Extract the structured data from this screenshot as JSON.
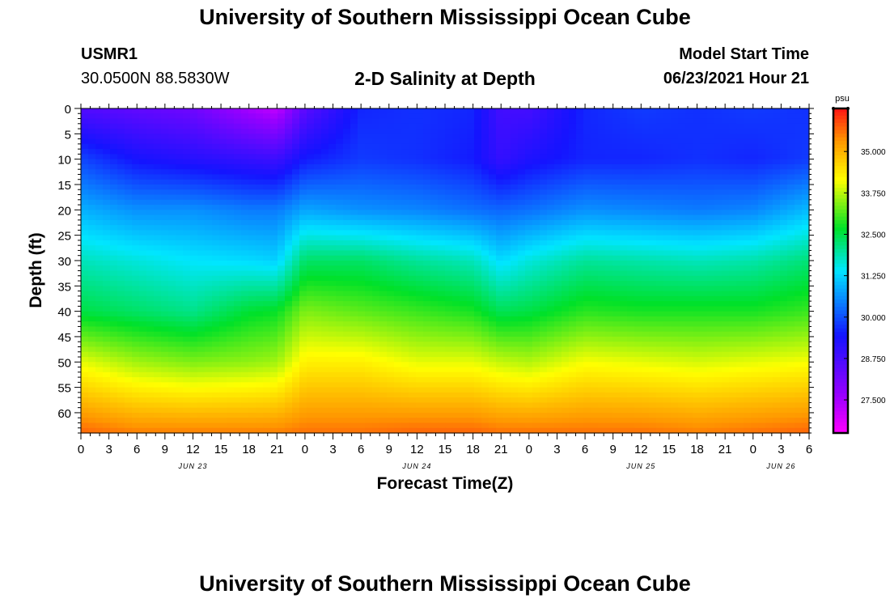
{
  "header": {
    "title": "University of Southern Mississippi Ocean Cube",
    "station_id": "USMR1",
    "coordinates": "30.0500N  88.5830W",
    "plot_title": "2-D Salinity at Depth",
    "start_label": "Model Start Time",
    "start_value": "06/23/2021 Hour 21"
  },
  "footer": {
    "title": "University of Southern Mississippi Ocean Cube"
  },
  "colors": {
    "scale_low": "#ff00ff",
    "scale_mid": "#0000ff",
    "scale_high": "#ff0000"
  },
  "chart_data": {
    "type": "heatmap",
    "title": "2-D Salinity at Depth",
    "xlabel": "Forecast Time(Z)",
    "ylabel": "Depth (ft)",
    "units": "psu",
    "x_range_hours": [
      0,
      78
    ],
    "x_ticks": [
      {
        "hour": 0,
        "label": "0"
      },
      {
        "hour": 3,
        "label": "3"
      },
      {
        "hour": 6,
        "label": "6"
      },
      {
        "hour": 9,
        "label": "9"
      },
      {
        "hour": 12,
        "label": "12"
      },
      {
        "hour": 15,
        "label": "15"
      },
      {
        "hour": 18,
        "label": "18"
      },
      {
        "hour": 21,
        "label": "21"
      },
      {
        "hour": 24,
        "label": "0"
      },
      {
        "hour": 27,
        "label": "3"
      },
      {
        "hour": 30,
        "label": "6"
      },
      {
        "hour": 33,
        "label": "9"
      },
      {
        "hour": 36,
        "label": "12"
      },
      {
        "hour": 39,
        "label": "15"
      },
      {
        "hour": 42,
        "label": "18"
      },
      {
        "hour": 45,
        "label": "21"
      },
      {
        "hour": 48,
        "label": "0"
      },
      {
        "hour": 51,
        "label": "3"
      },
      {
        "hour": 54,
        "label": "6"
      },
      {
        "hour": 57,
        "label": "9"
      },
      {
        "hour": 60,
        "label": "12"
      },
      {
        "hour": 63,
        "label": "15"
      },
      {
        "hour": 66,
        "label": "18"
      },
      {
        "hour": 69,
        "label": "21"
      },
      {
        "hour": 72,
        "label": "0"
      },
      {
        "hour": 75,
        "label": "3"
      },
      {
        "hour": 78,
        "label": "6"
      }
    ],
    "date_labels": [
      {
        "hour": 12,
        "label": "JUN 23"
      },
      {
        "hour": 36,
        "label": "JUN 24"
      },
      {
        "hour": 60,
        "label": "JUN 25"
      },
      {
        "hour": 75,
        "label": "JUN 26"
      }
    ],
    "y_range_ft": [
      0,
      64
    ],
    "y_ticks": [
      0,
      5,
      10,
      15,
      20,
      25,
      30,
      35,
      40,
      45,
      50,
      55,
      60
    ],
    "colorbar": {
      "label": "psu",
      "range": [
        26.5,
        36.3
      ],
      "ticks": [
        "27.500",
        "28.750",
        "30.000",
        "31.250",
        "32.500",
        "33.750",
        "35.000"
      ]
    },
    "hours": [
      0,
      6,
      12,
      18,
      21,
      24,
      30,
      36,
      42,
      45,
      48,
      54,
      60,
      66,
      72,
      78
    ],
    "depths": [
      0,
      10,
      20,
      30,
      40,
      50,
      64
    ],
    "salinity": [
      [
        28.6,
        28.4,
        28.2,
        27.5,
        27.2,
        28.5,
        29.6,
        29.7,
        29.6,
        28.8,
        28.8,
        29.6,
        29.8,
        29.7,
        29.8,
        29.7
      ],
      [
        29.9,
        29.4,
        29.2,
        29.0,
        28.9,
        29.5,
        29.8,
        29.7,
        29.5,
        29.0,
        29.3,
        29.6,
        29.6,
        29.7,
        29.6,
        29.8
      ],
      [
        30.9,
        30.6,
        30.6,
        30.4,
        30.4,
        30.8,
        30.6,
        30.5,
        30.3,
        30.2,
        30.3,
        30.6,
        30.5,
        30.4,
        30.5,
        31.0
      ],
      [
        31.8,
        31.6,
        31.4,
        31.3,
        31.2,
        32.3,
        32.3,
        32.0,
        31.8,
        31.3,
        31.6,
        32.0,
        31.9,
        31.8,
        31.9,
        32.2
      ],
      [
        32.5,
        32.3,
        32.1,
        32.6,
        32.7,
        33.4,
        33.2,
        33.0,
        32.8,
        32.4,
        32.5,
        32.9,
        32.8,
        32.8,
        32.8,
        33.0
      ],
      [
        34.0,
        33.6,
        33.4,
        33.5,
        33.6,
        34.3,
        34.3,
        34.0,
        34.0,
        33.8,
        33.7,
        34.1,
        34.0,
        33.9,
        34.0,
        34.1
      ],
      [
        35.7,
        35.5,
        35.5,
        35.5,
        35.5,
        35.6,
        35.6,
        35.7,
        35.7,
        35.6,
        35.6,
        35.6,
        35.6,
        35.5,
        35.6,
        35.7
      ]
    ]
  }
}
